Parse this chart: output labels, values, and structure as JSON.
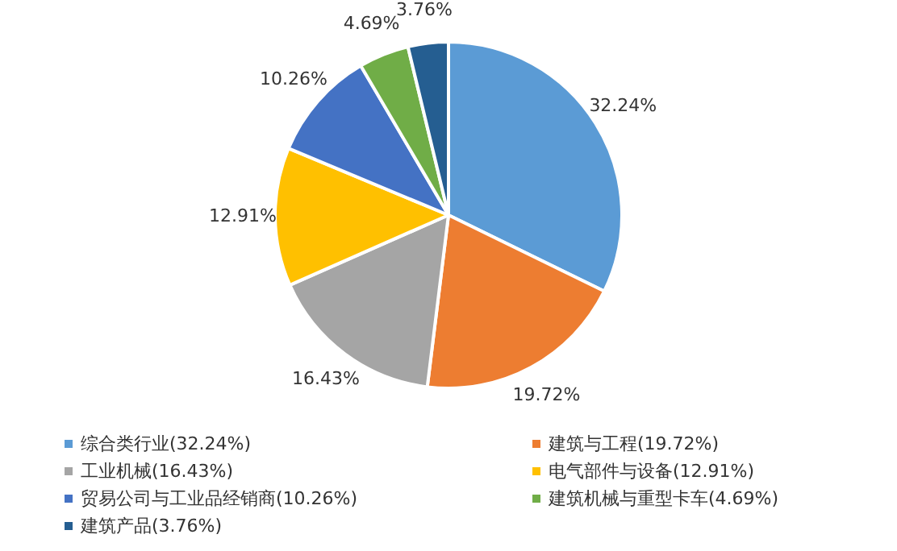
{
  "chart_data": {
    "type": "pie",
    "categories": [
      "综合类行业(32.24%)",
      "建筑与工程(19.72%)",
      "工业机械(16.43%)",
      "电气部件与设备(12.91%)",
      "贸易公司与工业品经销商(10.26%)",
      "建筑机械与重型卡车(4.69%)",
      "建筑产品(3.76%)"
    ],
    "values": [
      32.24,
      19.72,
      16.43,
      12.91,
      10.26,
      4.69,
      3.76
    ],
    "value_labels": [
      "32.24%",
      "19.72%",
      "16.43%",
      "12.91%",
      "10.26%",
      "4.69%",
      "3.76%"
    ],
    "colors": [
      "#5b9bd5",
      "#ed7d31",
      "#a5a5a5",
      "#ffc000",
      "#4472c4",
      "#70ad47",
      "#255e91"
    ],
    "legend": "bottom"
  }
}
